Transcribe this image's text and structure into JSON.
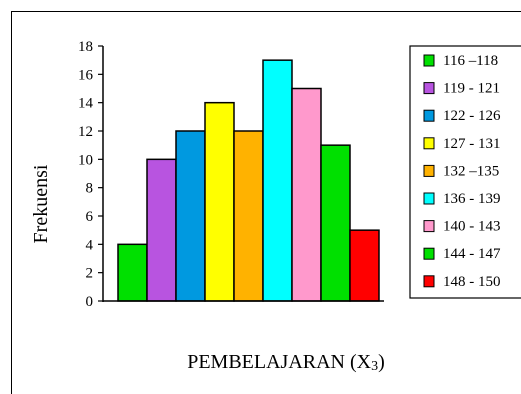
{
  "chart_data": {
    "type": "bar",
    "title": "",
    "xlabel": "PEMBELAJARAN (X3)",
    "ylabel": "Frekuensi",
    "ylim": [
      0,
      18
    ],
    "yticks": [
      "0",
      "2",
      "4",
      "6",
      "8",
      "10",
      "12",
      "14",
      "16",
      "18"
    ],
    "grid": false,
    "legend_position": "right",
    "categories": [
      "116 –118",
      "119 - 121",
      "122 - 126",
      "127 - 131",
      "132 –135",
      "136 - 139",
      "140 - 143",
      "144 - 147",
      "148 - 150"
    ],
    "values": [
      4,
      10,
      12,
      14,
      12,
      17,
      15,
      11,
      5
    ],
    "colors": [
      "#00e000",
      "#b854e0",
      "#0099e0",
      "#ffff00",
      "#ffb200",
      "#00ffff",
      "#ff99cc",
      "#00e000",
      "#ff0000"
    ]
  }
}
